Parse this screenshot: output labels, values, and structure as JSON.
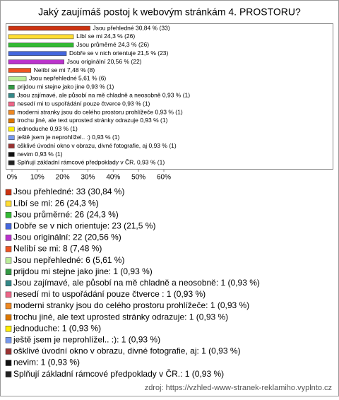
{
  "chart_data": {
    "type": "hbar",
    "title": "Jaký zaujímáš postoj k webovým stránkám 4. PROSTORU?",
    "values": [
      30.84,
      24.3,
      24.3,
      21.5,
      20.56,
      7.48,
      5.61,
      0.93,
      0.93,
      0.93,
      0.93,
      0.93,
      0.93,
      0.93,
      0.93,
      0.93,
      0.93
    ],
    "value_labels": [
      "Jsou přehledné 30,84 % (33)",
      "Líbí se mi 24,3 % (26)",
      "Jsou průměrné 24,3 % (26)",
      "Dobře se v nich orientuje 21,5 % (23)",
      "Jsou originální 20,56 % (22)",
      "Nelíbí se mi 7,48 % (8)",
      "Jsou nepřehledné 5,61 % (6)",
      "prijdou mi stejne jako jine 0,93 % (1)",
      "Jsou zajímavé, ale působí na mě chladně a neosobně 0,93 % (1)",
      "nesedí mi to uspořádání pouze čtverce  0,93 % (1)",
      "moderni stranky jsou do celého prostoru prohlížeče 0,93 % (1)",
      "trochu jiné, ale text uprosted stránky odrazuje 0,93 % (1)",
      "jednoduche 0,93 % (1)",
      "ještě jsem je neprohlížel.. :) 0,93 % (1)",
      "ošklivé úvodní okno v obrazu, divné fotografie, aj 0,93 % (1)",
      "nevim 0,93 % (1)",
      "Splňují základní rámcové předpoklady v ČR. 0,93 % (1)"
    ],
    "legend_labels": [
      "Jsou přehledné: 33 (30,84 %)",
      "Líbí se mi: 26 (24,3 %)",
      "Jsou průměrné: 26 (24,3 %)",
      "Dobře se v nich orientuje: 23 (21,5 %)",
      "Jsou originální: 22 (20,56 %)",
      "Nelíbí se mi: 8 (7,48 %)",
      "Jsou nepřehledné: 6 (5,61 %)",
      "prijdou mi stejne jako jine: 1 (0,93 %)",
      "Jsou zajímavé, ale působí na mě chladně a neosobně: 1 (0,93 %)",
      "nesedí mi to uspořádání pouze čtverce : 1 (0,93 %)",
      "moderni stranky jsou do celého prostoru prohlížeče: 1 (0,93 %)",
      "trochu jiné, ale text uprosted stránky odrazuje: 1 (0,93 %)",
      "jednoduche: 1 (0,93 %)",
      "ještě jsem je neprohlížel.. :): 1 (0,93 %)",
      "ošklivé úvodní okno v obrazu, divné fotografie, aj: 1 (0,93 %)",
      "nevim: 1 (0,93 %)",
      "Splňují základní rámcové předpoklady v ČR.: 1 (0,93 %)"
    ],
    "colors": [
      "#cc3311",
      "#ffdd33",
      "#33bb33",
      "#4466dd",
      "#bb33cc",
      "#ee5522",
      "#bbee99",
      "#339944",
      "#338888",
      "#ee6688",
      "#ee8822",
      "#dd7700",
      "#ffee00",
      "#7799ee",
      "#993333",
      "#111111",
      "#222222"
    ],
    "xlim": [
      0,
      60
    ],
    "xticks": [
      {
        "value": 0,
        "label": "0%"
      },
      {
        "value": 10,
        "label": "10%"
      },
      {
        "value": 20,
        "label": "20%"
      },
      {
        "value": 30,
        "label": "30%"
      },
      {
        "value": 40,
        "label": "40%"
      },
      {
        "value": 50,
        "label": "50%"
      },
      {
        "value": 60,
        "label": "60%"
      }
    ],
    "source": "zdroj: https://vzhled-www-stranek-reklamiho.vyplnto.cz"
  }
}
